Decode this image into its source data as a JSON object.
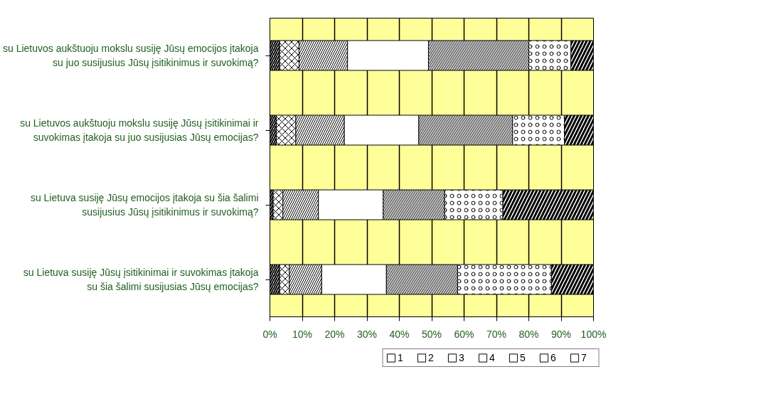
{
  "chart_data": {
    "type": "bar",
    "orientation": "horizontal",
    "stacked": true,
    "categories": [
      "su Lietuvos aukštuoju mokslu susiję Jūsų emocijos įtakoja su juo susijusius Jūsų įsitikinimus ir suvokimą?",
      "su Lietuvos aukštuoju mokslu susiję Jūsų įsitikinimai ir suvokimas įtakoja su juo susijusias Jūsų emocijas?",
      "su Lietuva susiję Jūsų emocijos įtakoja su šia šalimi susijusius Jūsų įsitikinimus ir suvokimą?",
      "su Lietuva susiję Jūsų įsitikinimai ir suvokimas įtakoja su šia šalimi susijusias Jūsų emocijas?"
    ],
    "series": [
      {
        "name": "1",
        "color": "#ffffff",
        "values": [
          3,
          2,
          1,
          3
        ]
      },
      {
        "name": "2",
        "color": "#ffffff",
        "values": [
          6,
          6,
          3,
          3
        ]
      },
      {
        "name": "3",
        "color": "#ffffff",
        "values": [
          15,
          15,
          11,
          10
        ]
      },
      {
        "name": "4",
        "color": "#ffffff",
        "values": [
          25,
          23,
          20,
          20
        ]
      },
      {
        "name": "5",
        "color": "#ffffff",
        "values": [
          31,
          29,
          19,
          22
        ]
      },
      {
        "name": "6",
        "color": "#ffffff",
        "values": [
          13,
          16,
          18,
          29
        ]
      },
      {
        "name": "7",
        "color": "#ffffff",
        "values": [
          7,
          9,
          28,
          13
        ]
      }
    ],
    "xlim": [
      0,
      100
    ],
    "xticks": [
      {
        "value": 0,
        "label": "0%"
      },
      {
        "value": 10,
        "label": "10%"
      },
      {
        "value": 20,
        "label": "20%"
      },
      {
        "value": 30,
        "label": "30%"
      },
      {
        "value": 40,
        "label": "40%"
      },
      {
        "value": 50,
        "label": "50%"
      },
      {
        "value": 60,
        "label": "60%"
      },
      {
        "value": 70,
        "label": "70%"
      },
      {
        "value": 80,
        "label": "80%"
      },
      {
        "value": 90,
        "label": "90%"
      },
      {
        "value": 100,
        "label": "100%"
      }
    ],
    "grid": "x",
    "legend": "bottom"
  }
}
